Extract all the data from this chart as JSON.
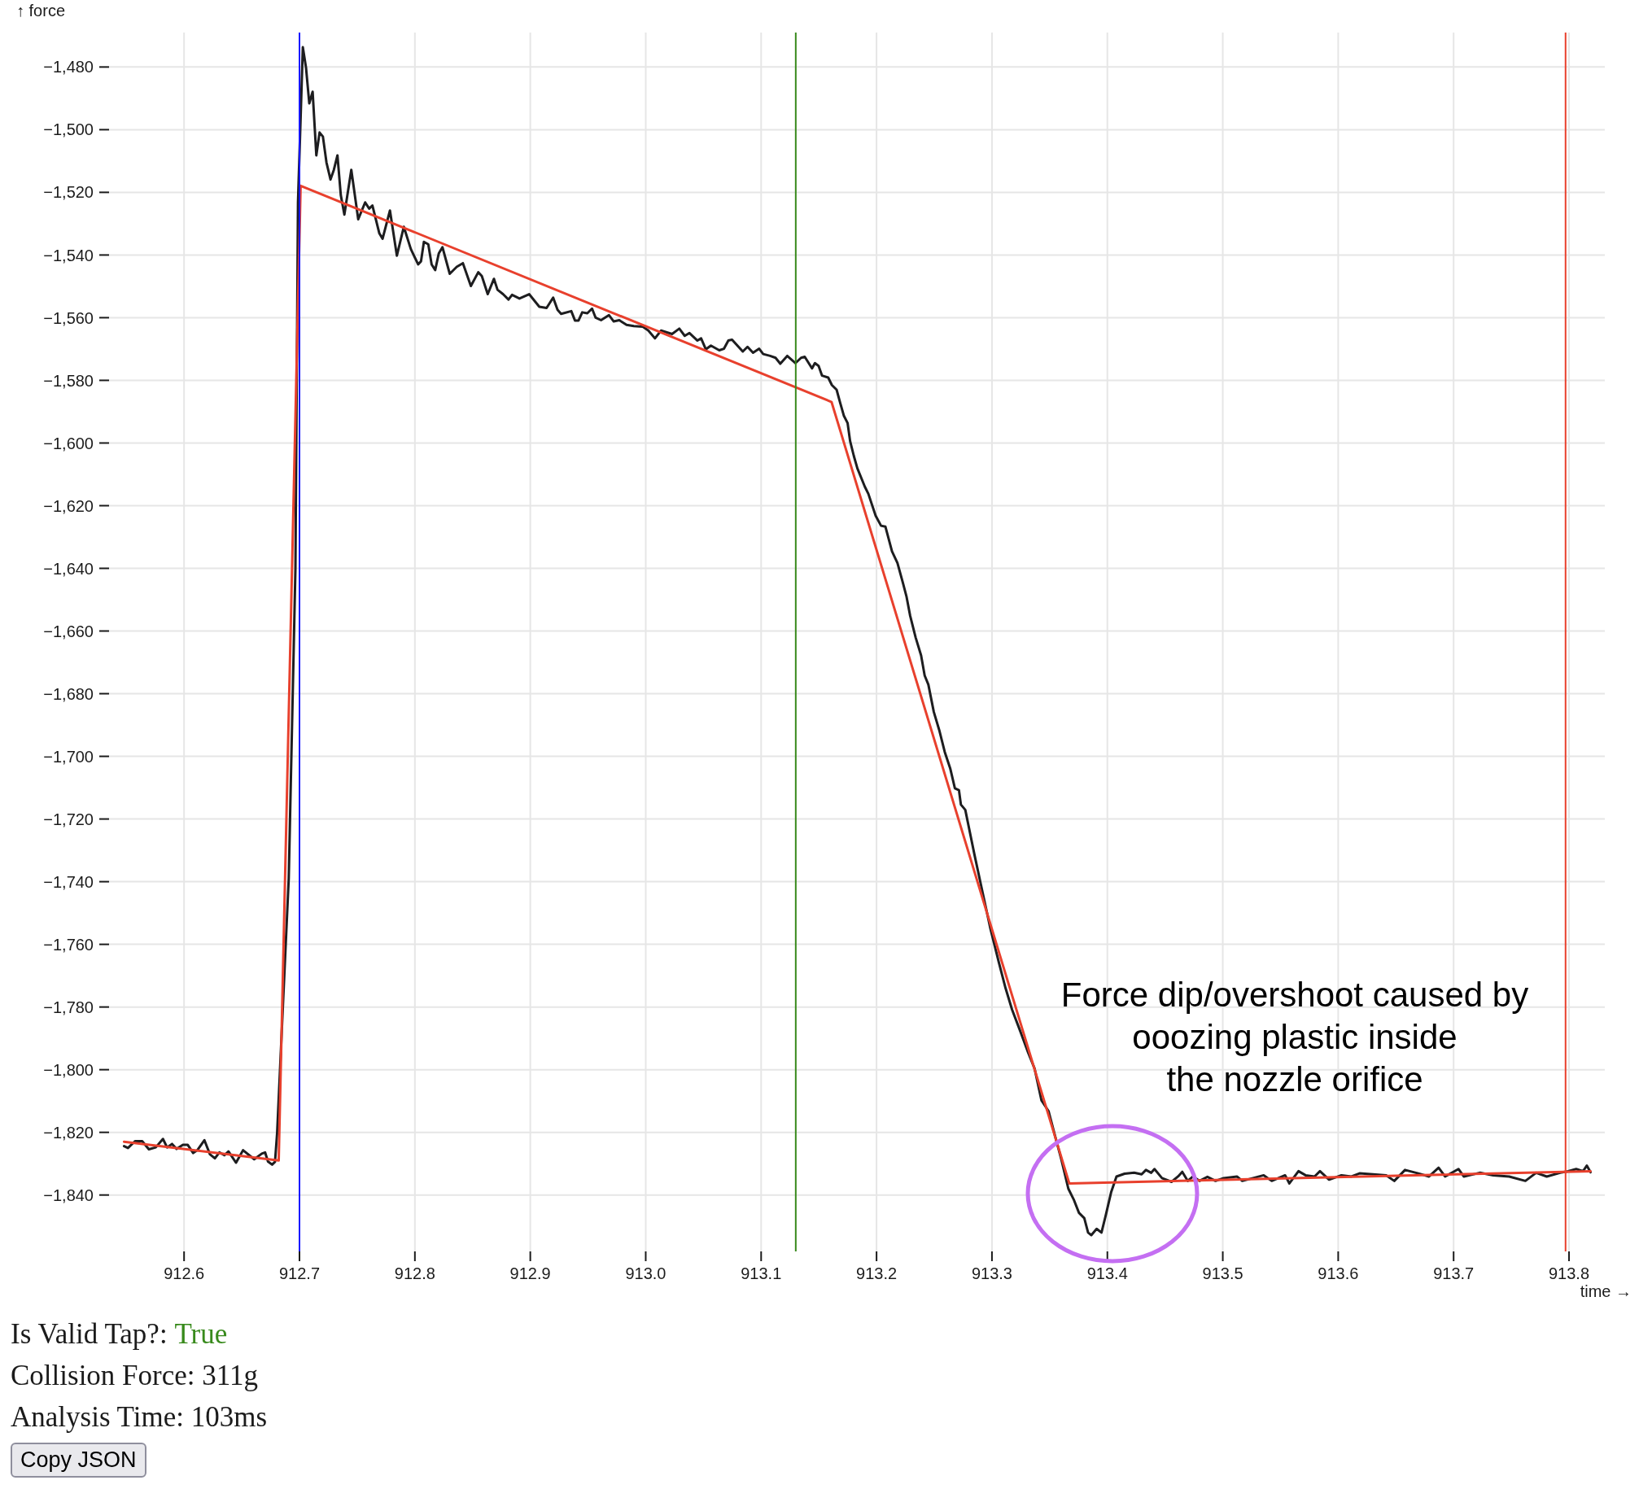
{
  "chart_data": {
    "type": "line",
    "xlabel": "time →",
    "ylabel": "↑ force",
    "xlim": [
      912.535,
      913.831
    ],
    "ylim": [
      -1858,
      -1469
    ],
    "xticks": [
      912.6,
      912.7,
      912.8,
      912.9,
      {
        "value": 913,
        "label": "913.0"
      },
      913.1,
      913.2,
      913.3,
      913.4,
      913.5,
      913.6,
      913.7,
      913.8
    ],
    "yticks": [
      {
        "value": -1840,
        "label": "−1,840"
      },
      {
        "value": -1820,
        "label": "−1,820"
      },
      {
        "value": -1800,
        "label": "−1,800"
      },
      {
        "value": -1780,
        "label": "−1,780"
      },
      {
        "value": -1760,
        "label": "−1,760"
      },
      {
        "value": -1740,
        "label": "−1,740"
      },
      {
        "value": -1720,
        "label": "−1,720"
      },
      {
        "value": -1700,
        "label": "−1,700"
      },
      {
        "value": -1680,
        "label": "−1,680"
      },
      {
        "value": -1660,
        "label": "−1,660"
      },
      {
        "value": -1640,
        "label": "−1,640"
      },
      {
        "value": -1620,
        "label": "−1,620"
      },
      {
        "value": -1600,
        "label": "−1,600"
      },
      {
        "value": -1580,
        "label": "−1,580"
      },
      {
        "value": -1560,
        "label": "−1,560"
      },
      {
        "value": -1540,
        "label": "−1,540"
      },
      {
        "value": -1520,
        "label": "−1,520"
      },
      {
        "value": -1500,
        "label": "−1,500"
      },
      {
        "value": -1480,
        "label": "−1,480"
      }
    ],
    "grid": true,
    "series": [
      {
        "color": "#1d1d1f",
        "x": [
          912.548,
          912.5514,
          912.5575,
          912.5637,
          912.5695,
          912.5755,
          912.5817,
          912.5853,
          912.5896,
          912.5935,
          912.599,
          912.6032,
          912.6079,
          912.6115,
          912.6176,
          912.6224,
          912.6267,
          912.6306,
          912.6349,
          912.6385,
          912.645,
          912.6511,
          912.6608,
          912.6673,
          912.6702,
          912.6727,
          912.6763,
          912.6788,
          912.6806,
          912.6907,
          912.6965,
          912.6987,
          912.7029,
          912.7057,
          912.7085,
          912.7114,
          912.7146,
          912.7174,
          912.7203,
          912.7234,
          912.7269,
          912.7298,
          912.7329,
          912.7358,
          912.7389,
          912.7449,
          912.7509,
          912.7569,
          912.7604,
          912.7632,
          912.7692,
          912.772,
          912.7784,
          912.7844,
          912.7904,
          912.7965,
          912.8028,
          912.8053,
          912.8078,
          912.8116,
          912.8145,
          912.8176,
          912.8207,
          912.8239,
          912.8302,
          912.8362,
          912.8416,
          912.8485,
          912.8549,
          912.858,
          912.8631,
          912.8685,
          912.8716,
          912.8764,
          912.8811,
          912.8842,
          912.8906,
          912.899,
          912.9078,
          912.9141,
          912.9198,
          912.9236,
          912.9267,
          912.9355,
          912.9387,
          912.9418,
          912.945,
          912.9494,
          912.9535,
          912.9566,
          912.9613,
          912.9682,
          912.9723,
          912.9771,
          912.9834,
          912.9897,
          912.9975,
          913.0023,
          913.008,
          913.0133,
          913.0228,
          913.0291,
          913.0338,
          913.0379,
          913.0448,
          913.048,
          913.0521,
          913.0565,
          913.0637,
          913.0678,
          913.0716,
          913.0748,
          913.0841,
          913.0882,
          913.093,
          913.0983,
          913.1018,
          913.1078,
          913.1125,
          913.1166,
          913.1226,
          913.1298,
          913.1346,
          913.1378,
          913.1441,
          913.1466,
          913.1498,
          913.1528,
          913.1581,
          913.1613,
          913.1654,
          913.1685,
          913.1717,
          913.1749,
          913.1771,
          913.1803,
          913.1834,
          913.1898,
          913.1929,
          913.1992,
          913.2039,
          913.2077,
          913.2134,
          913.2181,
          913.2228,
          913.2259,
          913.2291,
          913.2339,
          913.2386,
          913.2417,
          913.2449,
          913.2496,
          913.2543,
          913.2591,
          913.2638,
          913.2679,
          913.2714,
          913.2731,
          913.2769,
          913.2848,
          913.2918,
          913.2988,
          913.3058,
          913.3118,
          913.3174,
          913.3244,
          913.3313,
          913.3369,
          913.3429,
          913.349,
          913.3545,
          913.3601,
          913.3662,
          913.3708,
          913.3754,
          913.38,
          913.3833,
          913.3861,
          913.3907,
          913.3949,
          913.3986,
          913.4032,
          913.4079,
          913.4149,
          913.4232,
          913.4297,
          913.4334,
          913.438,
          913.4408,
          913.4473,
          913.4556,
          913.4612,
          913.4649,
          913.4696,
          913.4742,
          913.4798,
          913.4867,
          913.4937,
          913.5007,
          913.5123,
          913.5169,
          913.5262,
          913.5355,
          913.5424,
          913.554,
          913.5577,
          913.5656,
          913.5717,
          913.5795,
          913.5842,
          913.5921,
          913.6028,
          913.6115,
          913.6185,
          913.6301,
          913.6416,
          913.6486,
          913.6579,
          913.6694,
          913.6787,
          913.687,
          913.6926,
          913.7042,
          913.7088,
          913.7227,
          913.7343,
          913.7482,
          913.7622,
          913.7715,
          913.7807,
          913.7923,
          913.7992,
          913.8062,
          913.8122,
          913.8154,
          913.8186
        ],
        "values": [
          -1824.4,
          -1825.0,
          -1822.8,
          -1822.8,
          -1825.4,
          -1824.8,
          -1822.1,
          -1824.8,
          -1823.7,
          -1825.3,
          -1824.0,
          -1824.0,
          -1826.6,
          -1825.7,
          -1822.5,
          -1827.0,
          -1828.3,
          -1826.4,
          -1827.3,
          -1826.1,
          -1829.7,
          -1825.7,
          -1828.6,
          -1826.8,
          -1826.4,
          -1829.3,
          -1830.3,
          -1829.4,
          -1820.4,
          -1738.9,
          -1640.0,
          -1523.2,
          -1473.7,
          -1480.3,
          -1491.6,
          -1487.9,
          -1508.2,
          -1500.9,
          -1502.2,
          -1510.5,
          -1515.9,
          -1512.8,
          -1508.2,
          -1520.9,
          -1527.1,
          -1512.8,
          -1528.6,
          -1523.2,
          -1525.2,
          -1524.2,
          -1533.1,
          -1534.8,
          -1525.8,
          -1540.2,
          -1531.0,
          -1538.1,
          -1543.0,
          -1542.0,
          -1535.8,
          -1536.6,
          -1543.0,
          -1544.8,
          -1539.5,
          -1537.5,
          -1546.0,
          -1543.8,
          -1542.6,
          -1549.9,
          -1545.5,
          -1546.7,
          -1552.5,
          -1547.6,
          -1551.1,
          -1552.5,
          -1554.2,
          -1552.7,
          -1553.9,
          -1552.5,
          -1556.5,
          -1556.9,
          -1553.6,
          -1557.5,
          -1558.8,
          -1557.9,
          -1560.9,
          -1560.9,
          -1558.3,
          -1558.6,
          -1557.1,
          -1560.0,
          -1560.8,
          -1559.2,
          -1561.2,
          -1560.8,
          -1562.3,
          -1562.7,
          -1562.9,
          -1564.1,
          -1566.6,
          -1564.1,
          -1565.2,
          -1563.5,
          -1565.8,
          -1564.9,
          -1567.3,
          -1566.6,
          -1570.1,
          -1568.9,
          -1570.4,
          -1569.9,
          -1567.3,
          -1567.0,
          -1570.8,
          -1569.3,
          -1571.2,
          -1569.9,
          -1571.6,
          -1572.2,
          -1572.8,
          -1574.7,
          -1572.2,
          -1574.5,
          -1572.8,
          -1572.5,
          -1576.2,
          -1574.5,
          -1575.4,
          -1578.5,
          -1579.1,
          -1581.5,
          -1583.0,
          -1587.2,
          -1591.3,
          -1593.6,
          -1599.4,
          -1604.1,
          -1608.1,
          -1613.9,
          -1616.2,
          -1623.2,
          -1626.4,
          -1626.7,
          -1634.6,
          -1638.3,
          -1644.6,
          -1648.9,
          -1655.1,
          -1662.1,
          -1667.8,
          -1674.2,
          -1677.1,
          -1685.8,
          -1691.6,
          -1698.6,
          -1703.8,
          -1710.2,
          -1710.8,
          -1715.4,
          -1717.1,
          -1731.3,
          -1743.3,
          -1755.2,
          -1765.5,
          -1774.0,
          -1780.8,
          -1787.6,
          -1794.5,
          -1799.6,
          -1809.8,
          -1813.2,
          -1820.9,
          -1828.6,
          -1838.0,
          -1841.4,
          -1845.7,
          -1847.4,
          -1852.0,
          -1852.8,
          -1850.8,
          -1852.0,
          -1846.5,
          -1839.2,
          -1834.1,
          -1833.2,
          -1832.9,
          -1833.4,
          -1832.0,
          -1832.9,
          -1831.7,
          -1834.6,
          -1835.8,
          -1834.1,
          -1832.6,
          -1835.5,
          -1834.1,
          -1835.5,
          -1834.2,
          -1835.5,
          -1834.6,
          -1834.1,
          -1835.5,
          -1834.6,
          -1833.7,
          -1835.5,
          -1833.7,
          -1836.3,
          -1832.4,
          -1833.7,
          -1834.1,
          -1832.4,
          -1835.1,
          -1833.7,
          -1834.1,
          -1833.1,
          -1833.4,
          -1833.7,
          -1835.5,
          -1832.0,
          -1833.1,
          -1834.1,
          -1831.3,
          -1834.1,
          -1831.7,
          -1834.1,
          -1832.9,
          -1833.7,
          -1834.1,
          -1835.5,
          -1832.9,
          -1834.1,
          -1832.9,
          -1832.4,
          -1831.7,
          -1832.4,
          -1830.6,
          -1832.7
        ]
      },
      {
        "color": "#e8402d",
        "x": [
          912.548,
          912.682,
          912.701,
          913.161,
          913.367,
          913.8186
        ],
        "values": [
          -1823.0,
          -1829.0,
          -1517.9,
          -1586.9,
          -1836.3,
          -1832.4
        ]
      }
    ],
    "ref_lines": [
      {
        "axis": "x",
        "value": 912.7,
        "color": "#1616ff"
      },
      {
        "axis": "x",
        "value": 913.13,
        "color": "#388a1c"
      },
      {
        "axis": "x",
        "value": 913.797,
        "color": "#e8402d"
      }
    ],
    "annotations": [
      "Force dip/overshoot caused by\nooozing plastic inside\nthe nozzle orifice",
      "Is Valid Tap?:",
      "True",
      "Collision Force: 311g",
      "Analysis Time: 103ms",
      "Copy JSON"
    ]
  }
}
